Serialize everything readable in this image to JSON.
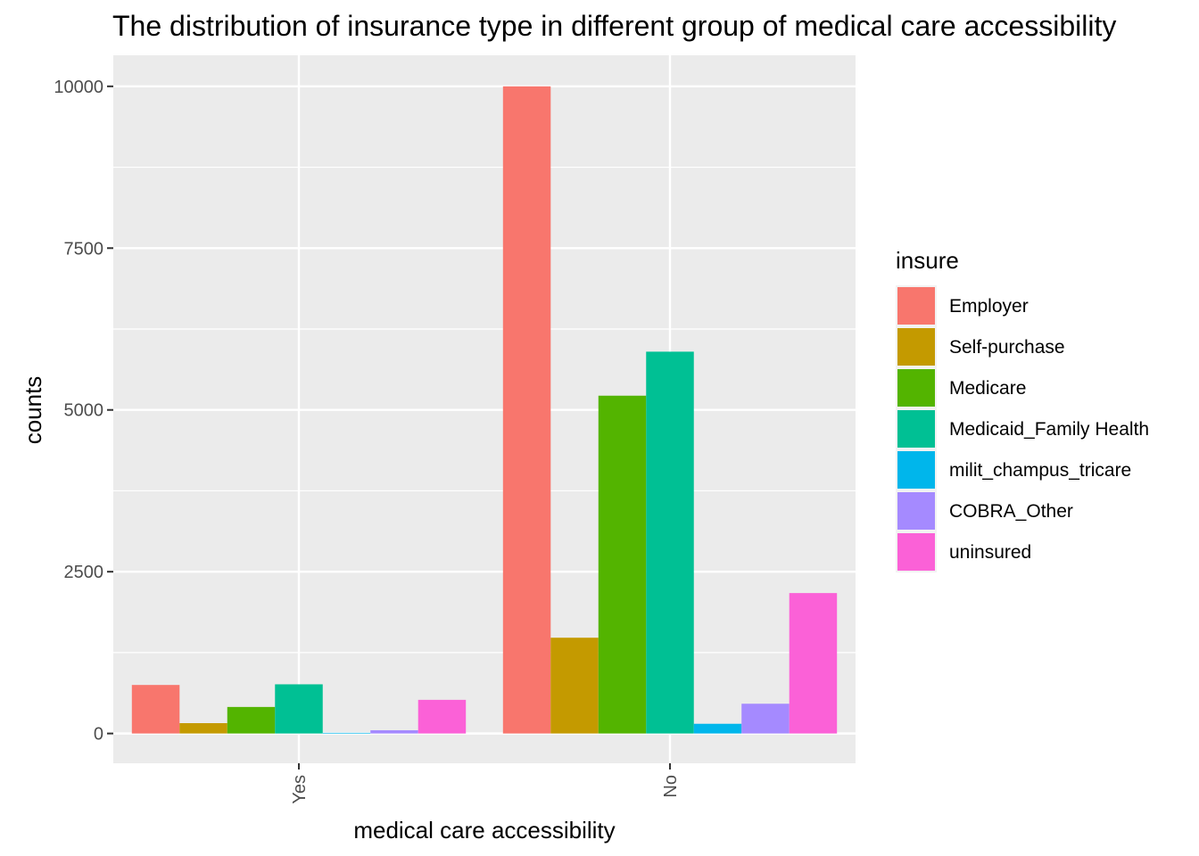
{
  "chart_data": {
    "type": "bar",
    "title": "The distribution of insurance type in different  group of medical care accessibility",
    "xlabel": "medical care accessibility",
    "ylabel": "counts",
    "categories": [
      "Yes",
      "No"
    ],
    "ylim": [
      -460,
      10480
    ],
    "yticks": [
      0,
      2500,
      5000,
      7500,
      10000
    ],
    "grid": true,
    "legend": {
      "title": "insure",
      "position": "right"
    },
    "series": [
      {
        "name": "Employer",
        "color": "#F8766D",
        "values": [
          750,
          10000
        ]
      },
      {
        "name": "Self-purchase",
        "color": "#C49A00",
        "values": [
          160,
          1480
        ]
      },
      {
        "name": "Medicare",
        "color": "#53B400",
        "values": [
          410,
          5220
        ]
      },
      {
        "name": "Medicaid_Family Health",
        "color": "#00C094",
        "values": [
          760,
          5900
        ]
      },
      {
        "name": "milit_champus_tricare",
        "color": "#00B6EB",
        "values": [
          10,
          150
        ]
      },
      {
        "name": "COBRA_Other",
        "color": "#A58AFF",
        "values": [
          50,
          460
        ]
      },
      {
        "name": "uninsured",
        "color": "#FB61D7",
        "values": [
          520,
          2170
        ]
      }
    ]
  }
}
